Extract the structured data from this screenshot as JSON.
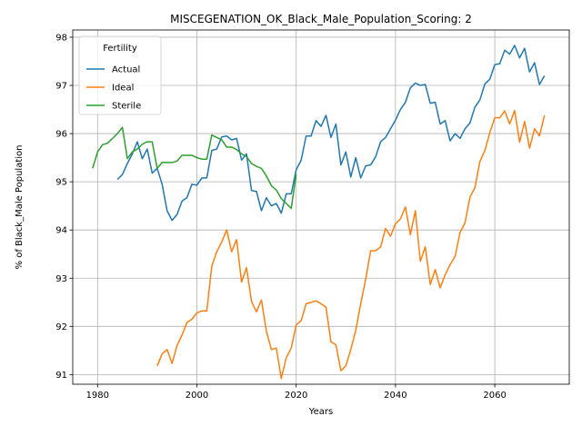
{
  "chart_data": {
    "type": "line",
    "title": "MISCEGENATION_OK_Black_Male_Population_Scoring: 2",
    "xlabel": "Years",
    "ylabel": "% of Black_Male Population",
    "xlim": [
      1975,
      2075
    ],
    "ylim": [
      90.8,
      98.15
    ],
    "xticks": [
      1980,
      2000,
      2020,
      2040,
      2060
    ],
    "yticks": [
      91,
      92,
      93,
      94,
      95,
      96,
      97,
      98
    ],
    "grid": true,
    "legend": {
      "title": "Fertility",
      "placement": "top-left"
    },
    "series": [
      {
        "name": "Actual",
        "color": "#1f77b4",
        "x": [
          1984,
          1985,
          1986,
          1987,
          1988,
          1989,
          1990,
          1991,
          1992,
          1993,
          1994,
          1995,
          1996,
          1997,
          1998,
          1999,
          2000,
          2001,
          2002,
          2003,
          2004,
          2005,
          2006,
          2007,
          2008,
          2009,
          2010,
          2011,
          2012,
          2013,
          2014,
          2015,
          2016,
          2017,
          2018,
          2019,
          2020,
          2021,
          2022,
          2023,
          2024,
          2025,
          2026,
          2027,
          2028,
          2029,
          2030,
          2031,
          2032,
          2033,
          2034,
          2035,
          2036,
          2037,
          2038,
          2039,
          2040,
          2041,
          2042,
          2043,
          2044,
          2045,
          2046,
          2047,
          2048,
          2049,
          2050,
          2051,
          2052,
          2053,
          2054,
          2055,
          2056,
          2057,
          2058,
          2059,
          2060,
          2061,
          2062,
          2063,
          2064,
          2065,
          2066,
          2067,
          2068,
          2069,
          2070
        ],
        "values": [
          95.05,
          95.15,
          95.38,
          95.58,
          95.83,
          95.48,
          95.68,
          95.18,
          95.28,
          94.95,
          94.4,
          94.2,
          94.32,
          94.6,
          94.67,
          94.95,
          94.93,
          95.08,
          95.08,
          95.65,
          95.68,
          95.93,
          95.95,
          95.87,
          95.9,
          95.45,
          95.58,
          94.82,
          94.8,
          94.4,
          94.67,
          94.5,
          94.55,
          94.35,
          94.75,
          94.75,
          95.25,
          95.45,
          95.95,
          95.95,
          96.27,
          96.15,
          96.38,
          95.92,
          96.2,
          95.35,
          95.62,
          95.1,
          95.5,
          95.08,
          95.33,
          95.35,
          95.52,
          95.83,
          95.92,
          96.1,
          96.28,
          96.5,
          96.65,
          96.95,
          97.05,
          97.0,
          97.02,
          96.63,
          96.65,
          96.2,
          96.27,
          95.85,
          96.0,
          95.9,
          96.1,
          96.22,
          96.55,
          96.7,
          97.03,
          97.13,
          97.43,
          97.45,
          97.73,
          97.65,
          97.83,
          97.57,
          97.77,
          97.28,
          97.47,
          97.02,
          97.2
        ]
      },
      {
        "name": "Ideal",
        "color": "#ff7f0e",
        "x": [
          1992,
          1993,
          1994,
          1995,
          1996,
          1997,
          1998,
          1999,
          2000,
          2001,
          2002,
          2003,
          2004,
          2005,
          2006,
          2007,
          2008,
          2009,
          2010,
          2011,
          2012,
          2013,
          2014,
          2015,
          2016,
          2017,
          2018,
          2019,
          2020,
          2021,
          2022,
          2023,
          2024,
          2025,
          2026,
          2027,
          2028,
          2029,
          2030,
          2031,
          2032,
          2033,
          2034,
          2035,
          2036,
          2037,
          2038,
          2039,
          2040,
          2041,
          2042,
          2043,
          2044,
          2045,
          2046,
          2047,
          2048,
          2049,
          2050,
          2051,
          2052,
          2053,
          2054,
          2055,
          2056,
          2057,
          2058,
          2059,
          2060,
          2061,
          2062,
          2063,
          2064,
          2065,
          2066,
          2067,
          2068,
          2069,
          2070
        ],
        "values": [
          91.18,
          91.43,
          91.52,
          91.23,
          91.6,
          91.82,
          92.08,
          92.15,
          92.28,
          92.32,
          92.32,
          93.25,
          93.55,
          93.75,
          94.0,
          93.55,
          93.8,
          92.92,
          93.22,
          92.52,
          92.3,
          92.55,
          91.9,
          91.52,
          91.55,
          90.92,
          91.35,
          91.55,
          92.03,
          92.12,
          92.47,
          92.5,
          92.53,
          92.47,
          92.4,
          91.68,
          91.62,
          91.08,
          91.18,
          91.52,
          91.92,
          92.47,
          92.98,
          93.57,
          93.57,
          93.65,
          94.03,
          93.87,
          94.13,
          94.23,
          94.48,
          93.9,
          94.4,
          93.35,
          93.65,
          92.87,
          93.18,
          92.8,
          93.07,
          93.28,
          93.45,
          93.95,
          94.15,
          94.68,
          94.88,
          95.42,
          95.65,
          96.02,
          96.33,
          96.33,
          96.47,
          96.2,
          96.48,
          95.82,
          96.25,
          95.7,
          96.1,
          95.95,
          96.38
        ]
      },
      {
        "name": "Sterile",
        "color": "#2ca02c",
        "x": [
          1979,
          1980,
          1981,
          1982,
          1983,
          1984,
          1985,
          1986,
          1987,
          1988,
          1989,
          1990,
          1991,
          1992,
          1993,
          1994,
          1995,
          1996,
          1997,
          1998,
          1999,
          2000,
          2001,
          2002,
          2003,
          2004,
          2005,
          2006,
          2007,
          2008,
          2009,
          2010,
          2011,
          2012,
          2013,
          2014,
          2015,
          2016,
          2017,
          2018,
          2019,
          2020
        ],
        "values": [
          95.28,
          95.62,
          95.77,
          95.8,
          95.9,
          96.0,
          96.13,
          95.48,
          95.62,
          95.68,
          95.78,
          95.83,
          95.83,
          95.28,
          95.4,
          95.4,
          95.4,
          95.43,
          95.55,
          95.55,
          95.55,
          95.5,
          95.47,
          95.47,
          95.97,
          95.92,
          95.87,
          95.72,
          95.72,
          95.67,
          95.58,
          95.52,
          95.38,
          95.32,
          95.28,
          95.12,
          94.92,
          94.83,
          94.65,
          94.55,
          94.45,
          95.15
        ]
      }
    ]
  }
}
